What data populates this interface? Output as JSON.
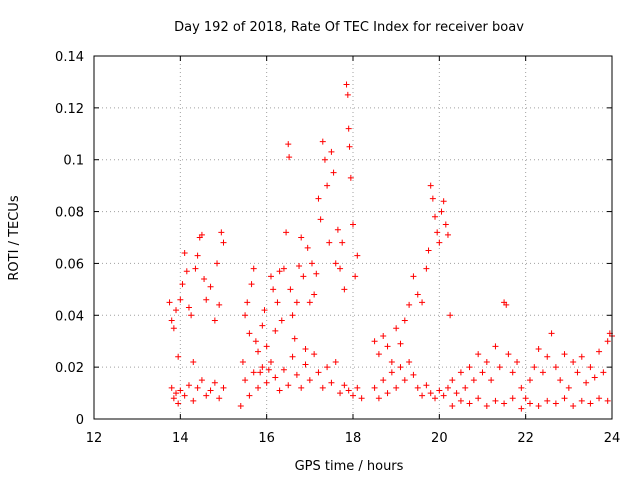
{
  "chart_data": {
    "type": "scatter",
    "title": "Day 192 of 2018, Rate Of TEC Index for receiver boav",
    "xlabel": "GPS time / hours",
    "ylabel": "ROTI / TECUs",
    "xlim": [
      12,
      24
    ],
    "ylim": [
      0,
      0.14
    ],
    "xticks": [
      12,
      14,
      16,
      18,
      20,
      22,
      24
    ],
    "yticks": [
      0,
      0.02,
      0.04,
      0.06,
      0.08,
      0.1,
      0.12,
      0.14
    ],
    "xtick_labels": [
      "12",
      "14",
      "16",
      "18",
      "20",
      "22",
      "24"
    ],
    "ytick_labels": [
      "0",
      "0.02",
      "0.04",
      "0.06",
      "0.08",
      "0.1",
      "0.12",
      "0.14"
    ],
    "grid": true,
    "marker": "+",
    "color": "#ff0000",
    "series": [
      {
        "name": "ROTI",
        "points": [
          [
            13.75,
            0.045
          ],
          [
            13.8,
            0.038
          ],
          [
            13.85,
            0.035
          ],
          [
            13.9,
            0.042
          ],
          [
            13.95,
            0.024
          ],
          [
            14.0,
            0.046
          ],
          [
            14.05,
            0.052
          ],
          [
            14.1,
            0.064
          ],
          [
            14.15,
            0.057
          ],
          [
            14.2,
            0.043
          ],
          [
            14.25,
            0.04
          ],
          [
            14.3,
            0.022
          ],
          [
            14.35,
            0.058
          ],
          [
            14.4,
            0.063
          ],
          [
            14.45,
            0.07
          ],
          [
            14.5,
            0.071
          ],
          [
            14.55,
            0.054
          ],
          [
            14.6,
            0.046
          ],
          [
            14.7,
            0.051
          ],
          [
            14.8,
            0.038
          ],
          [
            14.85,
            0.06
          ],
          [
            14.9,
            0.044
          ],
          [
            14.95,
            0.072
          ],
          [
            15.0,
            0.068
          ],
          [
            13.8,
            0.012
          ],
          [
            13.85,
            0.008
          ],
          [
            13.9,
            0.01
          ],
          [
            13.95,
            0.006
          ],
          [
            14.0,
            0.011
          ],
          [
            14.1,
            0.009
          ],
          [
            14.2,
            0.013
          ],
          [
            14.3,
            0.007
          ],
          [
            14.4,
            0.012
          ],
          [
            14.5,
            0.015
          ],
          [
            14.6,
            0.009
          ],
          [
            14.7,
            0.011
          ],
          [
            14.8,
            0.014
          ],
          [
            14.9,
            0.008
          ],
          [
            15.0,
            0.012
          ],
          [
            15.4,
            0.005
          ],
          [
            15.45,
            0.022
          ],
          [
            15.5,
            0.04
          ],
          [
            15.55,
            0.045
          ],
          [
            15.6,
            0.033
          ],
          [
            15.65,
            0.052
          ],
          [
            15.7,
            0.058
          ],
          [
            15.75,
            0.03
          ],
          [
            15.8,
            0.026
          ],
          [
            15.85,
            0.018
          ],
          [
            15.9,
            0.036
          ],
          [
            15.95,
            0.042
          ],
          [
            16.0,
            0.028
          ],
          [
            16.05,
            0.019
          ],
          [
            16.1,
            0.055
          ],
          [
            16.15,
            0.05
          ],
          [
            16.2,
            0.034
          ],
          [
            16.25,
            0.045
          ],
          [
            16.3,
            0.057
          ],
          [
            16.35,
            0.038
          ],
          [
            16.4,
            0.058
          ],
          [
            16.45,
            0.072
          ],
          [
            16.5,
            0.106
          ],
          [
            16.52,
            0.101
          ],
          [
            16.55,
            0.05
          ],
          [
            16.6,
            0.04
          ],
          [
            16.65,
            0.031
          ],
          [
            16.7,
            0.045
          ],
          [
            16.75,
            0.059
          ],
          [
            16.8,
            0.07
          ],
          [
            16.85,
            0.055
          ],
          [
            16.9,
            0.027
          ],
          [
            16.95,
            0.066
          ],
          [
            17.0,
            0.045
          ],
          [
            17.05,
            0.06
          ],
          [
            17.1,
            0.048
          ],
          [
            17.15,
            0.056
          ],
          [
            17.2,
            0.085
          ],
          [
            17.25,
            0.077
          ],
          [
            17.3,
            0.107
          ],
          [
            17.35,
            0.1
          ],
          [
            17.4,
            0.09
          ],
          [
            17.45,
            0.068
          ],
          [
            17.5,
            0.103
          ],
          [
            17.55,
            0.095
          ],
          [
            17.6,
            0.06
          ],
          [
            17.65,
            0.073
          ],
          [
            17.7,
            0.058
          ],
          [
            17.75,
            0.068
          ],
          [
            17.8,
            0.05
          ],
          [
            17.85,
            0.129
          ],
          [
            17.88,
            0.125
          ],
          [
            17.9,
            0.112
          ],
          [
            17.92,
            0.105
          ],
          [
            17.95,
            0.093
          ],
          [
            18.0,
            0.075
          ],
          [
            18.05,
            0.055
          ],
          [
            18.1,
            0.063
          ],
          [
            15.5,
            0.015
          ],
          [
            15.6,
            0.009
          ],
          [
            15.7,
            0.018
          ],
          [
            15.8,
            0.012
          ],
          [
            15.9,
            0.02
          ],
          [
            16.0,
            0.014
          ],
          [
            16.1,
            0.022
          ],
          [
            16.2,
            0.016
          ],
          [
            16.3,
            0.011
          ],
          [
            16.4,
            0.019
          ],
          [
            16.5,
            0.013
          ],
          [
            16.6,
            0.024
          ],
          [
            16.7,
            0.017
          ],
          [
            16.8,
            0.012
          ],
          [
            16.9,
            0.021
          ],
          [
            17.0,
            0.015
          ],
          [
            17.1,
            0.025
          ],
          [
            17.2,
            0.018
          ],
          [
            17.3,
            0.012
          ],
          [
            17.4,
            0.02
          ],
          [
            17.5,
            0.014
          ],
          [
            17.6,
            0.022
          ],
          [
            17.7,
            0.01
          ],
          [
            17.8,
            0.013
          ],
          [
            17.9,
            0.011
          ],
          [
            18.0,
            0.009
          ],
          [
            18.1,
            0.012
          ],
          [
            18.2,
            0.008
          ],
          [
            18.5,
            0.03
          ],
          [
            18.6,
            0.025
          ],
          [
            18.7,
            0.032
          ],
          [
            18.8,
            0.028
          ],
          [
            18.9,
            0.022
          ],
          [
            19.0,
            0.035
          ],
          [
            19.1,
            0.029
          ],
          [
            19.2,
            0.038
          ],
          [
            19.3,
            0.044
          ],
          [
            19.4,
            0.055
          ],
          [
            19.5,
            0.048
          ],
          [
            19.6,
            0.045
          ],
          [
            19.7,
            0.058
          ],
          [
            19.75,
            0.065
          ],
          [
            19.8,
            0.09
          ],
          [
            19.85,
            0.085
          ],
          [
            19.9,
            0.078
          ],
          [
            19.95,
            0.072
          ],
          [
            20.0,
            0.068
          ],
          [
            20.05,
            0.08
          ],
          [
            20.1,
            0.084
          ],
          [
            20.15,
            0.075
          ],
          [
            20.2,
            0.071
          ],
          [
            20.25,
            0.04
          ],
          [
            18.5,
            0.012
          ],
          [
            18.6,
            0.008
          ],
          [
            18.7,
            0.015
          ],
          [
            18.8,
            0.01
          ],
          [
            18.9,
            0.018
          ],
          [
            19.0,
            0.012
          ],
          [
            19.1,
            0.02
          ],
          [
            19.2,
            0.015
          ],
          [
            19.3,
            0.022
          ],
          [
            19.4,
            0.017
          ],
          [
            19.5,
            0.012
          ],
          [
            19.6,
            0.009
          ],
          [
            19.7,
            0.013
          ],
          [
            19.8,
            0.01
          ],
          [
            19.9,
            0.008
          ],
          [
            20.0,
            0.011
          ],
          [
            20.1,
            0.009
          ],
          [
            20.2,
            0.012
          ],
          [
            20.3,
            0.015
          ],
          [
            20.4,
            0.01
          ],
          [
            20.5,
            0.018
          ],
          [
            20.6,
            0.012
          ],
          [
            20.7,
            0.02
          ],
          [
            20.8,
            0.015
          ],
          [
            20.9,
            0.025
          ],
          [
            21.0,
            0.018
          ],
          [
            21.1,
            0.022
          ],
          [
            21.2,
            0.015
          ],
          [
            21.3,
            0.028
          ],
          [
            21.4,
            0.02
          ],
          [
            21.5,
            0.045
          ],
          [
            21.55,
            0.044
          ],
          [
            21.6,
            0.025
          ],
          [
            21.7,
            0.018
          ],
          [
            21.8,
            0.022
          ],
          [
            21.9,
            0.012
          ],
          [
            22.0,
            0.008
          ],
          [
            22.1,
            0.015
          ],
          [
            22.2,
            0.02
          ],
          [
            22.3,
            0.027
          ],
          [
            22.4,
            0.018
          ],
          [
            22.5,
            0.024
          ],
          [
            22.6,
            0.033
          ],
          [
            22.7,
            0.02
          ],
          [
            22.8,
            0.015
          ],
          [
            22.9,
            0.025
          ],
          [
            23.0,
            0.012
          ],
          [
            23.1,
            0.022
          ],
          [
            23.2,
            0.018
          ],
          [
            23.3,
            0.024
          ],
          [
            23.4,
            0.014
          ],
          [
            23.5,
            0.02
          ],
          [
            23.6,
            0.016
          ],
          [
            23.7,
            0.026
          ],
          [
            23.8,
            0.018
          ],
          [
            23.9,
            0.03
          ],
          [
            23.95,
            0.033
          ],
          [
            24.0,
            0.032
          ],
          [
            20.3,
            0.005
          ],
          [
            20.5,
            0.007
          ],
          [
            20.7,
            0.006
          ],
          [
            20.9,
            0.008
          ],
          [
            21.1,
            0.005
          ],
          [
            21.3,
            0.007
          ],
          [
            21.5,
            0.006
          ],
          [
            21.7,
            0.008
          ],
          [
            21.9,
            0.004
          ],
          [
            22.1,
            0.006
          ],
          [
            22.3,
            0.005
          ],
          [
            22.5,
            0.007
          ],
          [
            22.7,
            0.006
          ],
          [
            22.9,
            0.008
          ],
          [
            23.1,
            0.005
          ],
          [
            23.3,
            0.007
          ],
          [
            23.5,
            0.006
          ],
          [
            23.7,
            0.008
          ],
          [
            23.9,
            0.007
          ]
        ]
      }
    ]
  }
}
